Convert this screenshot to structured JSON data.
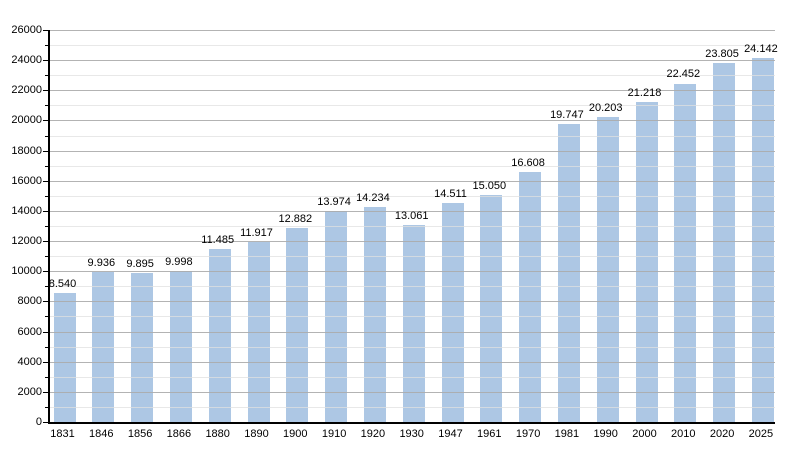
{
  "chart_data": {
    "type": "bar",
    "title": "",
    "xlabel": "",
    "ylabel": "",
    "legend_position": "none",
    "grid": true,
    "background_color": "#ffffff",
    "bar_color": "#adc7e4",
    "major_gridline_color": "#ababab",
    "minor_gridline_color": "#e0e0e0",
    "axis_color": "#000000",
    "ylim": [
      0,
      26000
    ],
    "y_major_step": 2000,
    "y_minor_step": 1000,
    "y_tick_labels": [
      "0",
      "2000",
      "4000",
      "6000",
      "8000",
      "10000",
      "12000",
      "14000",
      "16000",
      "18000",
      "20000",
      "22000",
      "24000",
      "26000"
    ],
    "categories": [
      "1831",
      "1846",
      "1856",
      "1866",
      "1880",
      "1890",
      "1900",
      "1910",
      "1920",
      "1930",
      "1947",
      "1961",
      "1970",
      "1981",
      "1990",
      "2000",
      "2010",
      "2020",
      "2025"
    ],
    "values": [
      8540,
      9936,
      9895,
      9998,
      11485,
      11917,
      12882,
      13974,
      14234,
      13061,
      14511,
      15050,
      16608,
      19747,
      20203,
      21218,
      22452,
      23805,
      24142
    ],
    "value_labels": [
      "8.540",
      "9.936",
      "9.895",
      "9.998",
      "11.485",
      "11.917",
      "12.882",
      "13.974",
      "14.234",
      "13.061",
      "14.511",
      "15.050",
      "16.608",
      "19.747",
      "20.203",
      "21.218",
      "22.452",
      "23.805",
      "24.142"
    ]
  }
}
